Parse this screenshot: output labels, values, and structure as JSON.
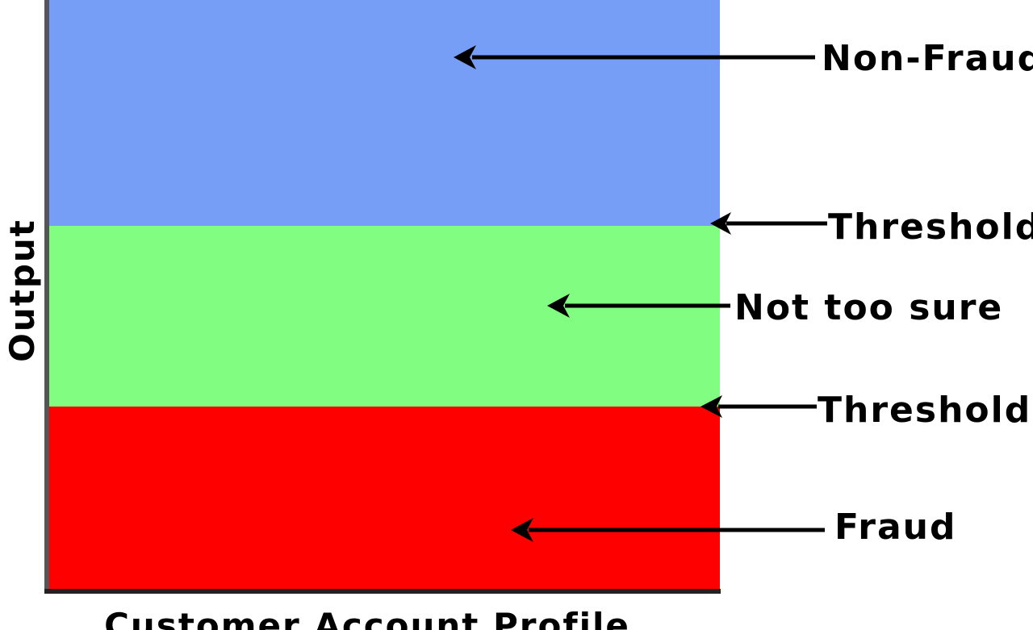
{
  "axes": {
    "y_label": "Output",
    "x_label": "Customer Account Profile"
  },
  "bands": [
    {
      "id": "non-fraud",
      "color": "#779ef7"
    },
    {
      "id": "not-too-sure",
      "color": "#81fe81"
    },
    {
      "id": "fraud",
      "color": "#fe0000"
    }
  ],
  "labels": {
    "non_fraud": "Non-Fraud",
    "threshold_upper": "Threshold",
    "not_too_sure": "Not too sure",
    "threshold_lower": "Threshold",
    "fraud": "Fraud"
  }
}
